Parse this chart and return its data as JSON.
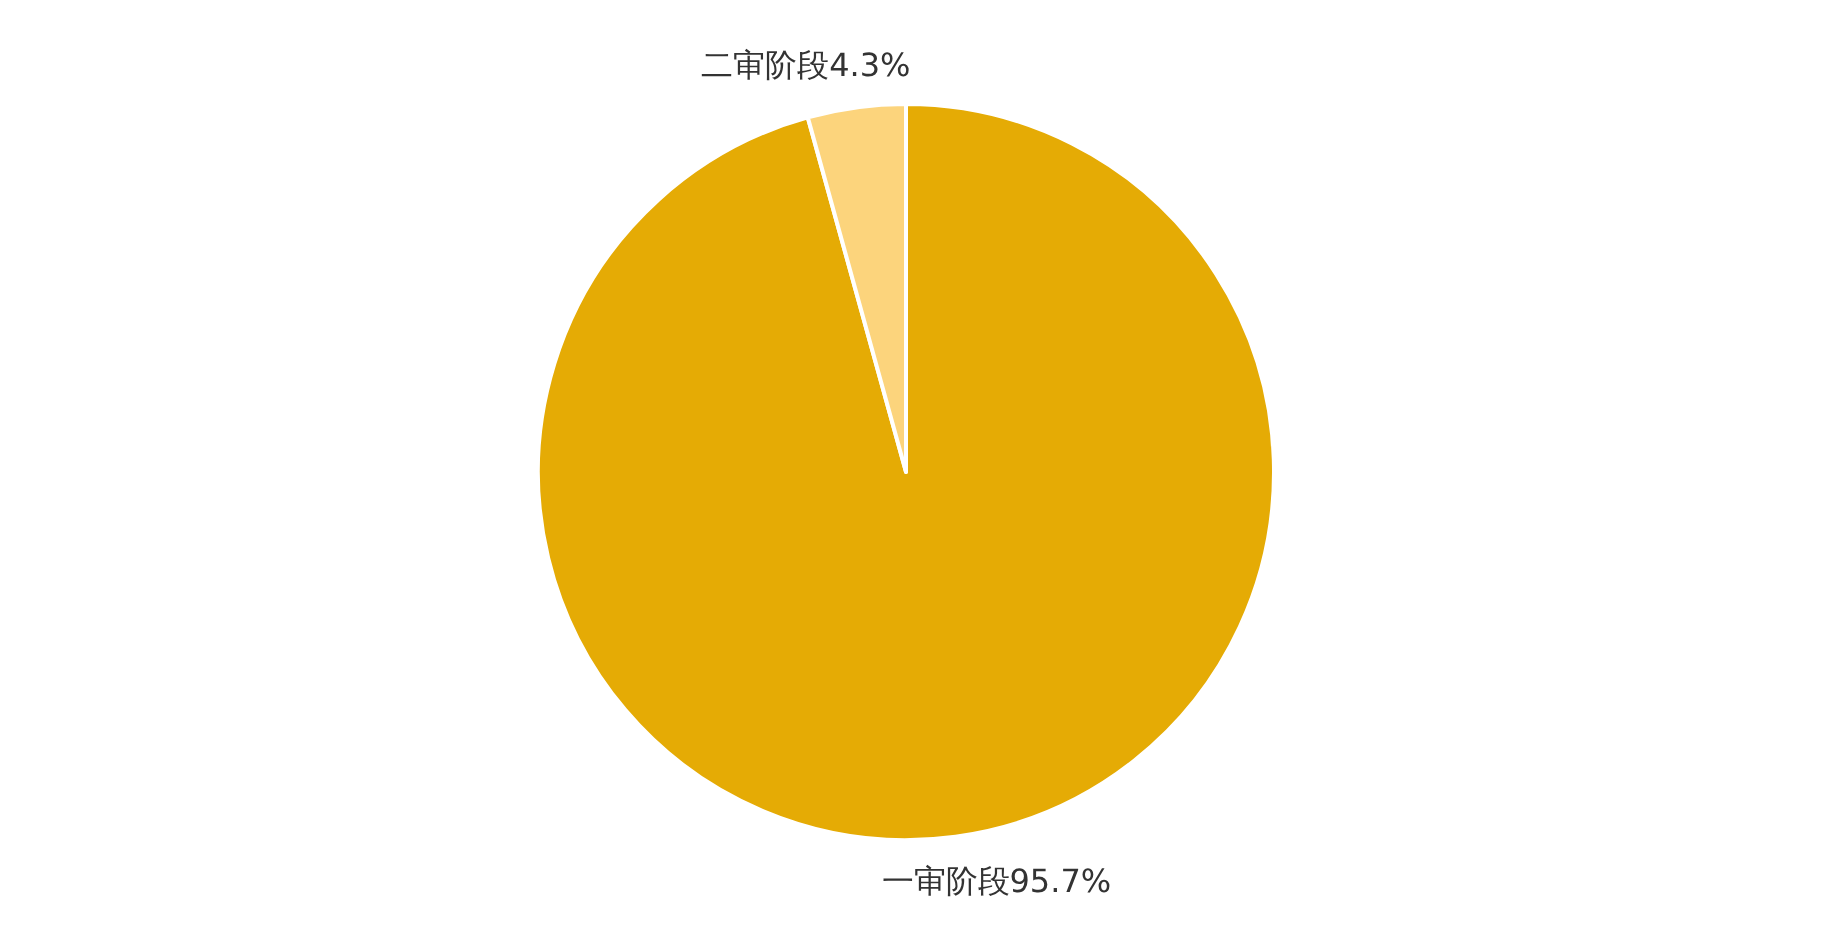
{
  "chart_data": {
    "type": "pie",
    "categories": [
      "一审阶段",
      "二审阶段"
    ],
    "values": [
      95.7,
      4.3
    ],
    "colors": [
      "#e5ab05",
      "#fcd47c"
    ],
    "value_labels": [
      "95.7%",
      "4.3%"
    ]
  }
}
